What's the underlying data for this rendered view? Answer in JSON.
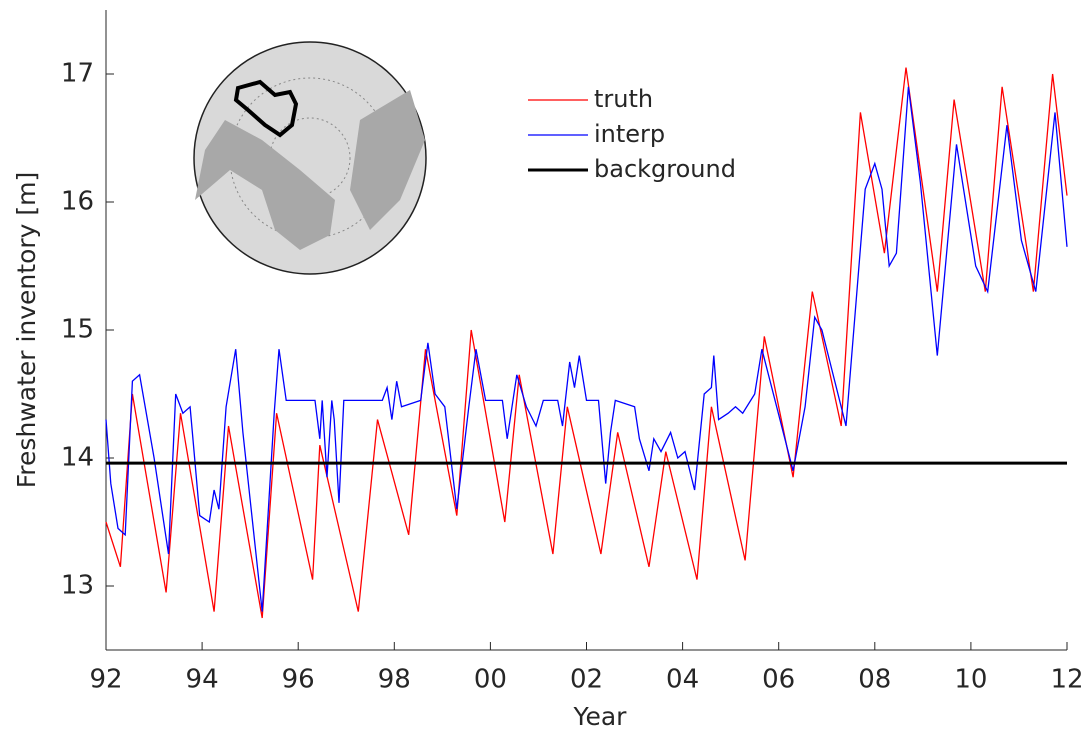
{
  "chart_data": {
    "type": "line",
    "xlabel": "Year",
    "ylabel": "Freshwater inventory [m]",
    "xlim": [
      1992,
      2012
    ],
    "ylim": [
      12.5,
      17.5
    ],
    "xticks": [
      {
        "value": 1992,
        "label": "92"
      },
      {
        "value": 1994,
        "label": "94"
      },
      {
        "value": 1996,
        "label": "96"
      },
      {
        "value": 1998,
        "label": "98"
      },
      {
        "value": 2000,
        "label": "00"
      },
      {
        "value": 2002,
        "label": "02"
      },
      {
        "value": 2004,
        "label": "04"
      },
      {
        "value": 2006,
        "label": "06"
      },
      {
        "value": 2008,
        "label": "08"
      },
      {
        "value": 2010,
        "label": "10"
      },
      {
        "value": 2012,
        "label": "12"
      }
    ],
    "yticks": [
      13,
      14,
      15,
      16,
      17
    ],
    "grid": false,
    "legend": "upper center",
    "series": [
      {
        "name": "truth",
        "color": "#ff0000",
        "x": [
          1992,
          1992.3,
          1992.55,
          1993.25,
          1993.55,
          1994.25,
          1994.55,
          1995.25,
          1995.55,
          1996.3,
          1996.45,
          1997.25,
          1997.65,
          1998.3,
          1998.65,
          1999.3,
          1999.6,
          2000.3,
          2000.6,
          2001.3,
          2001.6,
          2002.3,
          2002.65,
          2003.3,
          2003.65,
          2004.3,
          2004.6,
          2005.3,
          2005.7,
          2006.3,
          2006.7,
          2007.3,
          2007.7,
          2008.2,
          2008.65,
          2009.3,
          2009.65,
          2010.3,
          2010.65,
          2011.3,
          2011.7,
          2012
        ],
        "values": [
          13.5,
          13.15,
          14.5,
          12.95,
          14.35,
          12.8,
          14.25,
          12.75,
          14.35,
          13.05,
          14.1,
          12.8,
          14.3,
          13.4,
          14.85,
          13.55,
          15.0,
          13.5,
          14.65,
          13.25,
          14.4,
          13.25,
          14.2,
          13.15,
          14.05,
          13.05,
          14.4,
          13.2,
          14.95,
          13.85,
          15.3,
          14.25,
          16.7,
          15.6,
          17.05,
          15.3,
          16.8,
          15.3,
          16.9,
          15.3,
          17.0,
          16.05
        ]
      },
      {
        "name": "interp",
        "color": "#0000ff",
        "x": [
          1992,
          1992.1,
          1992.25,
          1992.4,
          1992.55,
          1992.7,
          1993,
          1993.3,
          1993.45,
          1993.6,
          1993.75,
          1993.95,
          1994.15,
          1994.25,
          1994.35,
          1994.5,
          1994.7,
          1994.85,
          1995.25,
          1995.5,
          1995.6,
          1995.75,
          1996.35,
          1996.45,
          1996.5,
          1996.6,
          1996.7,
          1996.75,
          1996.85,
          1996.95,
          1997.75,
          1997.85,
          1997.95,
          1998.05,
          1998.15,
          1998.55,
          1998.7,
          1998.85,
          1999.05,
          1999.3,
          1999.55,
          1999.7,
          1999.9,
          2000.25,
          2000.35,
          2000.55,
          2000.75,
          2000.95,
          2001.1,
          2001.4,
          2001.5,
          2001.65,
          2001.75,
          2001.85,
          2002,
          2002.25,
          2002.4,
          2002.5,
          2002.6,
          2003,
          2003.1,
          2003.3,
          2003.4,
          2003.55,
          2003.75,
          2003.9,
          2004.05,
          2004.25,
          2004.45,
          2004.6,
          2004.65,
          2004.75,
          2004.95,
          2005.1,
          2005.25,
          2005.5,
          2005.65,
          2006.3,
          2006.55,
          2006.75,
          2006.9,
          2007.4,
          2007.8,
          2008,
          2008.15,
          2008.3,
          2008.45,
          2008.7,
          2008.95,
          2009.3,
          2009.7,
          2010.1,
          2010.35,
          2010.75,
          2011.05,
          2011.35,
          2011.75,
          2012
        ],
        "values": [
          14.3,
          13.8,
          13.45,
          13.4,
          14.6,
          14.65,
          14.0,
          13.25,
          14.5,
          14.35,
          14.4,
          13.55,
          13.5,
          13.75,
          13.6,
          14.4,
          14.85,
          14.2,
          12.8,
          14.35,
          14.85,
          14.45,
          14.45,
          14.15,
          14.45,
          13.85,
          14.45,
          14.3,
          13.65,
          14.45,
          14.45,
          14.55,
          14.3,
          14.6,
          14.4,
          14.45,
          14.9,
          14.5,
          14.4,
          13.6,
          14.4,
          14.85,
          14.45,
          14.45,
          14.15,
          14.65,
          14.4,
          14.25,
          14.45,
          14.45,
          14.25,
          14.75,
          14.55,
          14.8,
          14.45,
          14.45,
          13.8,
          14.2,
          14.45,
          14.4,
          14.15,
          13.9,
          14.15,
          14.05,
          14.2,
          14.0,
          14.05,
          13.75,
          14.5,
          14.55,
          14.8,
          14.3,
          14.35,
          14.4,
          14.35,
          14.5,
          14.85,
          13.9,
          14.4,
          15.1,
          15.0,
          14.25,
          16.1,
          16.3,
          16.1,
          15.5,
          15.6,
          16.9,
          16.15,
          14.8,
          16.45,
          15.5,
          15.3,
          16.6,
          15.7,
          15.3,
          16.7,
          15.65
        ]
      },
      {
        "name": "background",
        "color": "#000000",
        "x": [
          1992,
          2012
        ],
        "values": [
          13.96,
          13.96
        ]
      }
    ]
  }
}
